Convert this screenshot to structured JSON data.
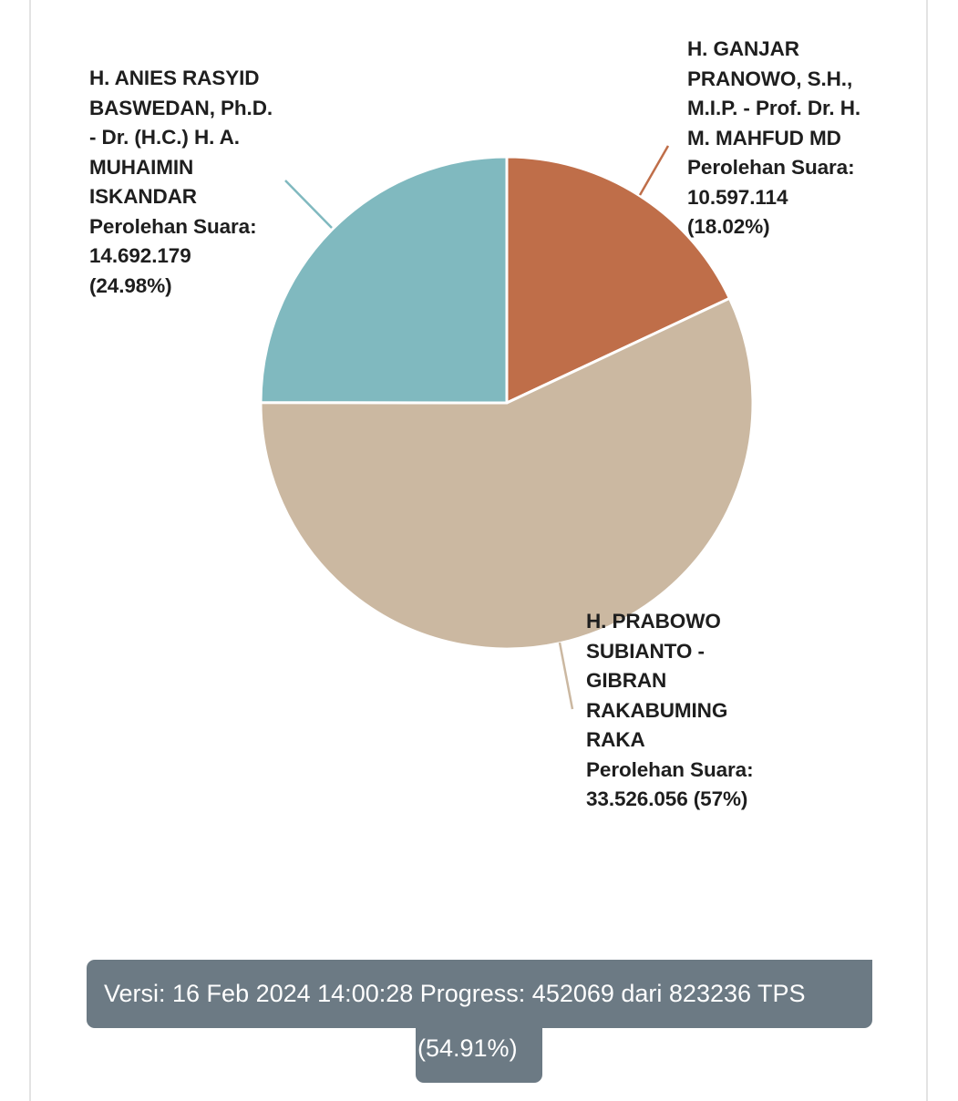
{
  "chart_data": {
    "type": "pie",
    "series_label": "Perolehan Suara",
    "slices": [
      {
        "key": "ganjar",
        "name_lines": [
          "H. GANJAR",
          "PRANOWO, S.H.,",
          "M.I.P. - Prof. Dr. H.",
          "M. MAHFUD MD"
        ],
        "label_caption": "Perolehan Suara:",
        "value": 10597114,
        "value_text": "10.597.114",
        "percent": 18.02,
        "percent_text": "(18.02%)",
        "color": "#bf6e49"
      },
      {
        "key": "prabowo",
        "name_lines": [
          "H. PRABOWO",
          "SUBIANTO -",
          "GIBRAN",
          "RAKABUMING",
          "RAKA"
        ],
        "label_caption": "Perolehan Suara:",
        "value": 33526056,
        "value_text": "33.526.056",
        "percent": 57,
        "percent_text": "(57%)",
        "color": "#cbb8a1"
      },
      {
        "key": "anies",
        "name_lines": [
          "H. ANIES RASYID",
          "BASWEDAN, Ph.D.",
          "- Dr. (H.C.) H. A.",
          "MUHAIMIN",
          "ISKANDAR"
        ],
        "label_caption": "Perolehan Suara:",
        "value": 14692179,
        "value_text": "14.692.179",
        "percent": 24.98,
        "percent_text": "(24.98%)",
        "color": "#80b9bf"
      }
    ]
  },
  "status": {
    "line1": "Versi: 16 Feb 2024 14:00:28 Progress: 452069 dari 823236 TPS",
    "line2": "(54.91%)"
  },
  "colors": {
    "status_bg": "#6c7a84",
    "leader_line_anies": "#80b9bf",
    "leader_line_ganjar": "#bf6e49",
    "leader_line_prabowo": "#cbb8a1"
  }
}
